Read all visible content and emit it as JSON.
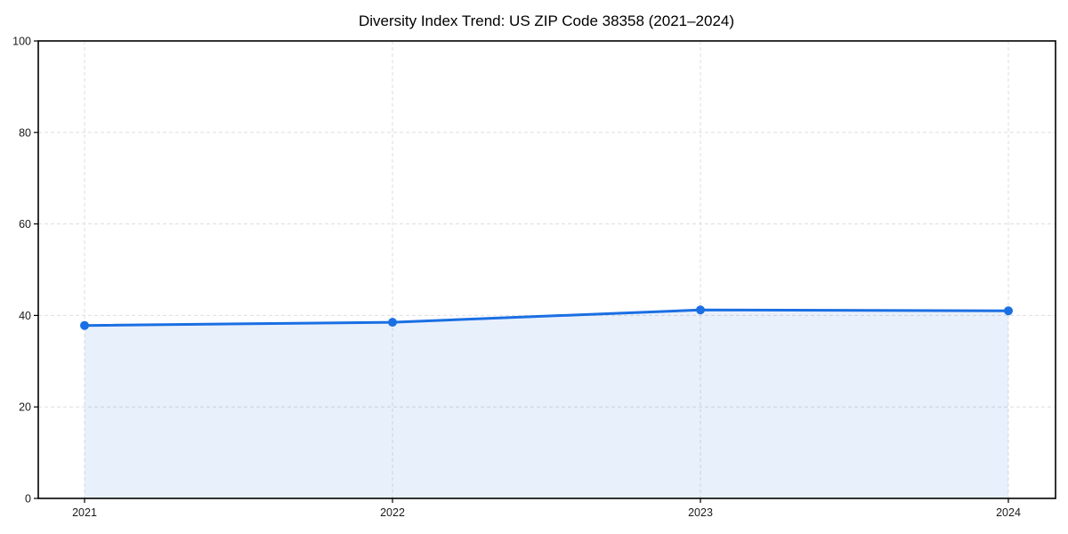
{
  "page": {
    "background": "#ffffff"
  },
  "chart_data": {
    "type": "area",
    "title": "Diversity Index Trend: US ZIP Code 38358 (2021–2024)",
    "categories": [
      "2021",
      "2022",
      "2023",
      "2024"
    ],
    "x": [
      2021,
      2022,
      2023,
      2024
    ],
    "series": [
      {
        "name": "Diversity Index",
        "values": [
          37.8,
          38.5,
          41.2,
          41.0
        ]
      }
    ],
    "xlabel": "",
    "ylabel": "",
    "ylim": [
      0,
      100
    ],
    "yticks": [
      0,
      20,
      40,
      60,
      80,
      100
    ],
    "grid": true,
    "grid_style": "dashed",
    "legend_position": "none",
    "line_color": "#1a6fe3",
    "marker_color": "#1a6fe3",
    "fill_color": "rgba(26, 111, 227, 0.10)",
    "frame_color": "#000000",
    "grid_color": "#dedede",
    "background_color": "#ffffff"
  }
}
